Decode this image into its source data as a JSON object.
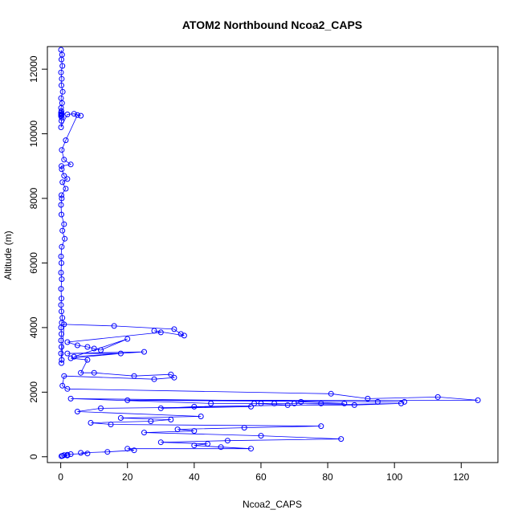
{
  "chart_data": {
    "type": "scatter",
    "title": "ATOM2 Northbound Ncoa2_CAPS",
    "xlabel": "Ncoa2_CAPS",
    "ylabel": "Altitude (m)",
    "xlim": [
      -4,
      131
    ],
    "ylim": [
      -180,
      12700
    ],
    "xticks": [
      0,
      20,
      40,
      60,
      80,
      100,
      120
    ],
    "yticks": [
      0,
      2000,
      4000,
      6000,
      8000,
      10000,
      12000
    ],
    "xtick_labels": [
      "0",
      "20",
      "40",
      "60",
      "80",
      "100",
      "120"
    ],
    "ytick_labels": [
      "0",
      "2000",
      "4000",
      "6000",
      "8000",
      "10000",
      "12000"
    ],
    "grid": false,
    "legend": "none",
    "point_style": "open-circle",
    "connect_points": true,
    "color": "#0000ff",
    "series": [
      {
        "x": [
          0.1,
          0.4,
          0.2,
          0.5,
          0.1,
          0.3,
          0.2,
          0.6,
          0.1,
          0.4,
          0.1,
          0.2,
          0.1,
          0.3,
          0.1,
          0.2,
          0.1,
          0.3,
          0.2,
          0.1,
          2,
          4,
          6,
          5,
          1.5,
          0.3,
          1,
          3,
          0.2,
          0.3,
          1,
          2,
          0.5,
          1.5,
          0.2,
          0.3,
          0.1,
          0.2,
          1,
          0.5,
          1.2,
          0.3,
          0.1,
          0.2,
          0.1,
          0.3,
          0.1,
          0.2,
          0.1,
          0.2,
          0.5,
          0.3,
          0.1,
          0.2,
          0.1,
          0.2,
          0.1,
          0.3,
          0.2,
          1,
          16,
          34,
          36,
          37,
          28,
          30,
          2,
          5,
          8,
          10,
          12,
          20,
          4,
          25,
          2,
          18,
          3,
          8,
          6,
          10,
          22,
          33,
          34,
          28,
          1,
          0.5,
          2,
          81,
          92,
          113,
          125,
          20,
          103,
          95,
          3,
          45,
          60,
          64,
          78,
          70,
          72,
          85,
          58,
          68,
          88,
          102,
          40,
          30,
          57,
          12,
          5,
          42,
          18,
          33,
          27,
          9,
          15,
          78,
          55,
          35,
          40,
          25,
          60,
          84,
          50,
          30,
          44,
          40,
          48,
          57,
          20,
          22,
          14,
          6,
          8,
          3,
          2,
          1,
          2,
          0.5,
          0.2
        ],
        "y": [
          12600,
          12450,
          12300,
          12100,
          11900,
          11700,
          11500,
          11300,
          11100,
          10950,
          10800,
          10700,
          10650,
          10620,
          10600,
          10580,
          10550,
          10500,
          10400,
          10200,
          10600,
          10620,
          10560,
          10580,
          9800,
          9500,
          9200,
          9050,
          9000,
          8900,
          8700,
          8600,
          8500,
          8300,
          8100,
          8000,
          7800,
          7500,
          7200,
          7000,
          6750,
          6500,
          6200,
          6000,
          5700,
          5500,
          5200,
          4900,
          4700,
          4500,
          4300,
          4150,
          4000,
          3800,
          3600,
          3400,
          3200,
          3000,
          2900,
          4100,
          4050,
          3950,
          3800,
          3750,
          3900,
          3850,
          3550,
          3450,
          3400,
          3350,
          3300,
          3650,
          3100,
          3250,
          3200,
          3200,
          3050,
          3000,
          2600,
          2600,
          2500,
          2550,
          2450,
          2400,
          2500,
          2200,
          2100,
          1950,
          1800,
          1850,
          1750,
          1750,
          1700,
          1700,
          1800,
          1650,
          1650,
          1650,
          1650,
          1650,
          1700,
          1650,
          1650,
          1600,
          1600,
          1650,
          1550,
          1500,
          1550,
          1500,
          1400,
          1250,
          1200,
          1150,
          1100,
          1050,
          1000,
          950,
          900,
          850,
          800,
          750,
          650,
          550,
          500,
          450,
          400,
          350,
          300,
          250,
          250,
          200,
          150,
          120,
          100,
          80,
          60,
          50,
          40,
          30,
          20
        ]
      }
    ]
  }
}
